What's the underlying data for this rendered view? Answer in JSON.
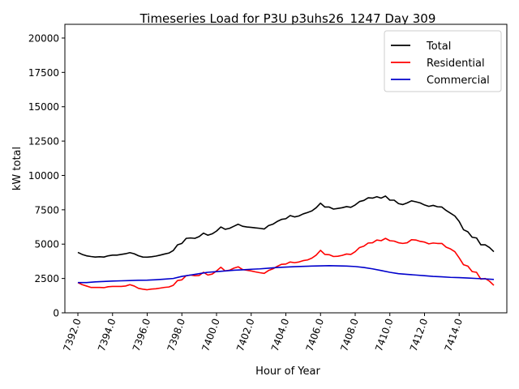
{
  "chart_data": {
    "type": "line",
    "title": "Timeseries Load for P3U p3uhs26_1247  Day 309",
    "xlabel": "Hour of Year",
    "ylabel": "kW total",
    "xlim": [
      7391.25,
      7416.75
    ],
    "ylim": [
      0,
      21000
    ],
    "x_ticks": [
      7392,
      7394,
      7396,
      7398,
      7400,
      7402,
      7404,
      7406,
      7408,
      7410,
      7412,
      7414
    ],
    "x_tick_labels": [
      "7392.0",
      "7394.0",
      "7396.0",
      "7398.0",
      "7400.0",
      "7402.0",
      "7404.0",
      "7406.0",
      "7408.0",
      "7410.0",
      "7412.0",
      "7414.0"
    ],
    "y_ticks": [
      0,
      2500,
      5000,
      7500,
      10000,
      12500,
      15000,
      17500,
      20000
    ],
    "y_tick_labels": [
      "0",
      "2500",
      "5000",
      "7500",
      "10000",
      "12500",
      "15000",
      "17500",
      "20000"
    ],
    "legend_position": "top-right",
    "grid": false,
    "series": [
      {
        "name": "Total",
        "color": "#000000",
        "points": [
          [
            7392.0,
            4400
          ],
          [
            7392.25,
            4250
          ],
          [
            7392.5,
            4150
          ],
          [
            7392.75,
            4100
          ],
          [
            7393.0,
            4060
          ],
          [
            7393.25,
            4080
          ],
          [
            7393.5,
            4060
          ],
          [
            7393.75,
            4150
          ],
          [
            7394.0,
            4200
          ],
          [
            7394.25,
            4200
          ],
          [
            7394.5,
            4250
          ],
          [
            7394.75,
            4300
          ],
          [
            7395.0,
            4380
          ],
          [
            7395.25,
            4300
          ],
          [
            7395.5,
            4150
          ],
          [
            7395.75,
            4060
          ],
          [
            7396.0,
            4050
          ],
          [
            7396.25,
            4080
          ],
          [
            7396.5,
            4130
          ],
          [
            7396.75,
            4200
          ],
          [
            7397.0,
            4280
          ],
          [
            7397.25,
            4350
          ],
          [
            7397.5,
            4530
          ],
          [
            7397.75,
            4950
          ],
          [
            7398.0,
            5050
          ],
          [
            7398.25,
            5420
          ],
          [
            7398.5,
            5450
          ],
          [
            7398.75,
            5420
          ],
          [
            7399.0,
            5550
          ],
          [
            7399.25,
            5800
          ],
          [
            7399.5,
            5650
          ],
          [
            7399.75,
            5750
          ],
          [
            7400.0,
            5950
          ],
          [
            7400.25,
            6250
          ],
          [
            7400.5,
            6080
          ],
          [
            7400.75,
            6150
          ],
          [
            7401.0,
            6300
          ],
          [
            7401.25,
            6450
          ],
          [
            7401.5,
            6300
          ],
          [
            7401.75,
            6250
          ],
          [
            7402.0,
            6220
          ],
          [
            7402.25,
            6180
          ],
          [
            7402.5,
            6150
          ],
          [
            7402.75,
            6100
          ],
          [
            7403.0,
            6350
          ],
          [
            7403.25,
            6450
          ],
          [
            7403.5,
            6650
          ],
          [
            7403.75,
            6800
          ],
          [
            7404.0,
            6850
          ],
          [
            7404.25,
            7080
          ],
          [
            7404.5,
            6980
          ],
          [
            7404.75,
            7050
          ],
          [
            7405.0,
            7200
          ],
          [
            7405.25,
            7300
          ],
          [
            7405.5,
            7420
          ],
          [
            7405.75,
            7650
          ],
          [
            7406.0,
            7980
          ],
          [
            7406.25,
            7700
          ],
          [
            7406.5,
            7700
          ],
          [
            7406.75,
            7550
          ],
          [
            7407.0,
            7600
          ],
          [
            7407.25,
            7650
          ],
          [
            7407.5,
            7730
          ],
          [
            7407.75,
            7680
          ],
          [
            7408.0,
            7850
          ],
          [
            7408.25,
            8100
          ],
          [
            7408.5,
            8180
          ],
          [
            7408.75,
            8370
          ],
          [
            7409.0,
            8350
          ],
          [
            7409.25,
            8450
          ],
          [
            7409.5,
            8350
          ],
          [
            7409.75,
            8500
          ],
          [
            7410.0,
            8200
          ],
          [
            7410.25,
            8200
          ],
          [
            7410.5,
            7950
          ],
          [
            7410.75,
            7880
          ],
          [
            7411.0,
            8000
          ],
          [
            7411.25,
            8150
          ],
          [
            7411.5,
            8080
          ],
          [
            7411.75,
            8000
          ],
          [
            7412.0,
            7850
          ],
          [
            7412.25,
            7750
          ],
          [
            7412.5,
            7820
          ],
          [
            7412.75,
            7720
          ],
          [
            7413.0,
            7700
          ],
          [
            7413.25,
            7450
          ],
          [
            7413.5,
            7250
          ],
          [
            7413.75,
            7050
          ],
          [
            7414.0,
            6650
          ],
          [
            7414.25,
            6050
          ],
          [
            7414.5,
            5900
          ],
          [
            7414.75,
            5500
          ],
          [
            7415.0,
            5450
          ],
          [
            7415.25,
            4950
          ],
          [
            7415.5,
            4950
          ],
          [
            7415.75,
            4750
          ],
          [
            7416.0,
            4450
          ]
        ]
      },
      {
        "name": "Residential",
        "color": "#ff0000",
        "points": [
          [
            7392.0,
            2200
          ],
          [
            7392.25,
            2050
          ],
          [
            7392.5,
            1950
          ],
          [
            7392.75,
            1850
          ],
          [
            7393.0,
            1850
          ],
          [
            7393.25,
            1850
          ],
          [
            7393.5,
            1830
          ],
          [
            7393.75,
            1900
          ],
          [
            7394.0,
            1920
          ],
          [
            7394.25,
            1920
          ],
          [
            7394.5,
            1920
          ],
          [
            7394.75,
            1950
          ],
          [
            7395.0,
            2050
          ],
          [
            7395.25,
            1950
          ],
          [
            7395.5,
            1780
          ],
          [
            7395.75,
            1720
          ],
          [
            7396.0,
            1680
          ],
          [
            7396.25,
            1730
          ],
          [
            7396.5,
            1750
          ],
          [
            7396.75,
            1800
          ],
          [
            7397.0,
            1850
          ],
          [
            7397.25,
            1880
          ],
          [
            7397.5,
            2000
          ],
          [
            7397.75,
            2350
          ],
          [
            7398.0,
            2400
          ],
          [
            7398.25,
            2700
          ],
          [
            7398.5,
            2750
          ],
          [
            7398.75,
            2700
          ],
          [
            7399.0,
            2720
          ],
          [
            7399.25,
            2950
          ],
          [
            7399.5,
            2750
          ],
          [
            7399.75,
            2820
          ],
          [
            7400.0,
            3050
          ],
          [
            7400.25,
            3320
          ],
          [
            7400.5,
            3050
          ],
          [
            7400.75,
            3100
          ],
          [
            7401.0,
            3250
          ],
          [
            7401.25,
            3350
          ],
          [
            7401.5,
            3150
          ],
          [
            7401.75,
            3100
          ],
          [
            7402.0,
            3050
          ],
          [
            7402.25,
            2980
          ],
          [
            7402.5,
            2920
          ],
          [
            7402.75,
            2870
          ],
          [
            7403.0,
            3080
          ],
          [
            7403.25,
            3200
          ],
          [
            7403.5,
            3380
          ],
          [
            7403.75,
            3530
          ],
          [
            7404.0,
            3550
          ],
          [
            7404.25,
            3700
          ],
          [
            7404.5,
            3650
          ],
          [
            7404.75,
            3700
          ],
          [
            7405.0,
            3800
          ],
          [
            7405.25,
            3850
          ],
          [
            7405.5,
            3980
          ],
          [
            7405.75,
            4200
          ],
          [
            7406.0,
            4550
          ],
          [
            7406.25,
            4250
          ],
          [
            7406.5,
            4230
          ],
          [
            7406.75,
            4100
          ],
          [
            7407.0,
            4120
          ],
          [
            7407.25,
            4180
          ],
          [
            7407.5,
            4280
          ],
          [
            7407.75,
            4250
          ],
          [
            7408.0,
            4450
          ],
          [
            7408.25,
            4750
          ],
          [
            7408.5,
            4850
          ],
          [
            7408.75,
            5080
          ],
          [
            7409.0,
            5100
          ],
          [
            7409.25,
            5300
          ],
          [
            7409.5,
            5250
          ],
          [
            7409.75,
            5420
          ],
          [
            7410.0,
            5250
          ],
          [
            7410.25,
            5220
          ],
          [
            7410.5,
            5100
          ],
          [
            7410.75,
            5050
          ],
          [
            7411.0,
            5100
          ],
          [
            7411.25,
            5320
          ],
          [
            7411.5,
            5300
          ],
          [
            7411.75,
            5200
          ],
          [
            7412.0,
            5150
          ],
          [
            7412.25,
            5020
          ],
          [
            7412.5,
            5080
          ],
          [
            7412.75,
            5050
          ],
          [
            7413.0,
            5050
          ],
          [
            7413.25,
            4780
          ],
          [
            7413.5,
            4650
          ],
          [
            7413.75,
            4450
          ],
          [
            7414.0,
            4000
          ],
          [
            7414.25,
            3500
          ],
          [
            7414.5,
            3400
          ],
          [
            7414.75,
            3000
          ],
          [
            7415.0,
            2950
          ],
          [
            7415.25,
            2450
          ],
          [
            7415.5,
            2500
          ],
          [
            7415.75,
            2300
          ],
          [
            7416.0,
            2000
          ]
        ]
      },
      {
        "name": "Commercial",
        "color": "#0000cc",
        "points": [
          [
            7392.0,
            2200
          ],
          [
            7392.5,
            2200
          ],
          [
            7393.0,
            2250
          ],
          [
            7393.5,
            2280
          ],
          [
            7394.0,
            2310
          ],
          [
            7394.5,
            2330
          ],
          [
            7395.0,
            2350
          ],
          [
            7395.5,
            2370
          ],
          [
            7396.0,
            2380
          ],
          [
            7396.5,
            2410
          ],
          [
            7397.0,
            2450
          ],
          [
            7397.5,
            2500
          ],
          [
            7398.0,
            2650
          ],
          [
            7398.5,
            2750
          ],
          [
            7399.0,
            2850
          ],
          [
            7399.5,
            2950
          ],
          [
            7400.0,
            3000
          ],
          [
            7400.5,
            3050
          ],
          [
            7401.0,
            3100
          ],
          [
            7401.5,
            3130
          ],
          [
            7402.0,
            3170
          ],
          [
            7402.5,
            3200
          ],
          [
            7403.0,
            3250
          ],
          [
            7403.5,
            3300
          ],
          [
            7404.0,
            3330
          ],
          [
            7404.5,
            3360
          ],
          [
            7405.0,
            3380
          ],
          [
            7405.5,
            3400
          ],
          [
            7406.0,
            3420
          ],
          [
            7406.5,
            3430
          ],
          [
            7407.0,
            3420
          ],
          [
            7407.5,
            3400
          ],
          [
            7408.0,
            3370
          ],
          [
            7408.5,
            3300
          ],
          [
            7409.0,
            3200
          ],
          [
            7409.5,
            3080
          ],
          [
            7410.0,
            2950
          ],
          [
            7410.5,
            2850
          ],
          [
            7411.0,
            2800
          ],
          [
            7411.5,
            2750
          ],
          [
            7412.0,
            2700
          ],
          [
            7412.5,
            2650
          ],
          [
            7413.0,
            2620
          ],
          [
            7413.5,
            2580
          ],
          [
            7414.0,
            2560
          ],
          [
            7414.5,
            2530
          ],
          [
            7415.0,
            2500
          ],
          [
            7415.5,
            2470
          ],
          [
            7416.0,
            2430
          ]
        ]
      }
    ]
  }
}
